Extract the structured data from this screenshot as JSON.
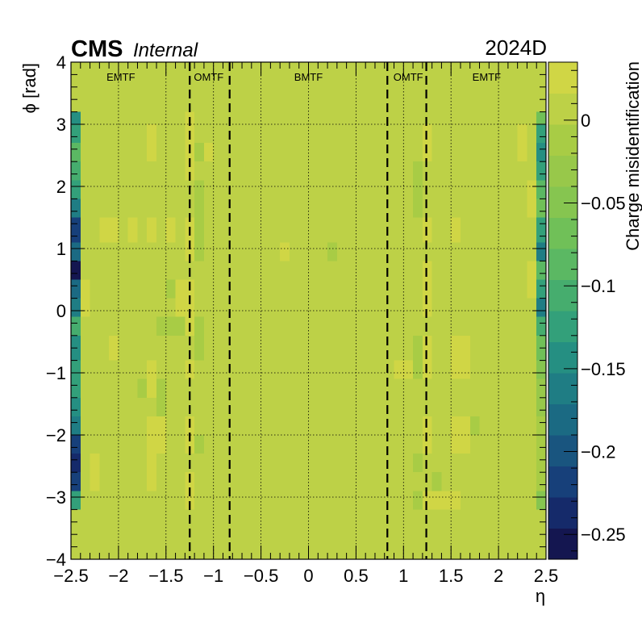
{
  "header": {
    "experiment": "CMS",
    "status": "Internal",
    "run_period": "2024D"
  },
  "chart_data": {
    "type": "heatmap",
    "title": "",
    "xlabel": "η",
    "ylabel": "ϕ [rad]",
    "zlabel": "Charge misidentification",
    "xlim": [
      -2.5,
      2.5
    ],
    "ylim": [
      -4,
      4
    ],
    "zlim": [
      -0.265,
      0.035
    ],
    "x_ticks": [
      -2.5,
      -2,
      -1.5,
      -1,
      -0.5,
      0,
      0.5,
      1,
      1.5,
      2,
      2.5
    ],
    "x_tick_labels": [
      "−2.5",
      "−2",
      "−1.5",
      "−1",
      "−0.5",
      "0",
      "0.5",
      "1",
      "1.5",
      "2",
      "2.5"
    ],
    "y_ticks": [
      -4,
      -3,
      -2,
      -1,
      0,
      1,
      2,
      3,
      4
    ],
    "y_tick_labels": [
      "−4",
      "−3",
      "−2",
      "−1",
      "0",
      "1",
      "2",
      "3",
      "4"
    ],
    "z_ticks": [
      0,
      -0.05,
      -0.1,
      -0.15,
      -0.2,
      -0.25
    ],
    "z_tick_labels": [
      "0",
      "−0.05",
      "−0.1",
      "−0.15",
      "−0.2",
      "−0.25"
    ],
    "grid": true,
    "colormap": [
      "#141650",
      "#152a6a",
      "#17407a",
      "#19557f",
      "#1b6a83",
      "#1f7d84",
      "#258f82",
      "#33a07a",
      "#46ad6e",
      "#5bb863",
      "#70c058",
      "#86c550",
      "#98c84a",
      "#a8cc45",
      "#bdd147",
      "#d0d645"
    ],
    "eta_bins": 50,
    "phi_bin_edges": [
      -3.2,
      -2.9,
      -2.6,
      -2.3,
      -2.0,
      -1.7,
      -1.4,
      -1.1,
      -0.8,
      -0.4,
      -0.1,
      0.2,
      0.5,
      0.8,
      1.1,
      1.5,
      1.8,
      2.1,
      2.4,
      2.7,
      3.0,
      3.2
    ],
    "baseline_value": 0.005,
    "cells": [
      {
        "eta": -2.45,
        "phi": [
          -3.2,
          -2.9
        ],
        "z": -0.13
      },
      {
        "eta": -2.45,
        "phi": [
          -2.9,
          -2.6
        ],
        "z": -0.21
      },
      {
        "eta": -2.45,
        "phi": [
          -2.6,
          -2.3
        ],
        "z": -0.24
      },
      {
        "eta": -2.45,
        "phi": [
          -2.3,
          -2.0
        ],
        "z": -0.21
      },
      {
        "eta": -2.45,
        "phi": [
          -2.0,
          -1.7
        ],
        "z": -0.17
      },
      {
        "eta": -2.45,
        "phi": [
          -1.7,
          -1.4
        ],
        "z": -0.14
      },
      {
        "eta": -2.45,
        "phi": [
          -1.4,
          -1.1
        ],
        "z": -0.12
      },
      {
        "eta": -2.45,
        "phi": [
          -1.1,
          -0.8
        ],
        "z": -0.12
      },
      {
        "eta": -2.45,
        "phi": [
          -0.8,
          -0.4
        ],
        "z": -0.14
      },
      {
        "eta": -2.45,
        "phi": [
          -0.4,
          -0.1
        ],
        "z": -0.11
      },
      {
        "eta": -2.45,
        "phi": [
          -0.1,
          0.2
        ],
        "z": -0.16
      },
      {
        "eta": -2.45,
        "phi": [
          0.2,
          0.5
        ],
        "z": -0.19
      },
      {
        "eta": -2.45,
        "phi": [
          0.5,
          0.8
        ],
        "z": -0.26
      },
      {
        "eta": -2.45,
        "phi": [
          0.8,
          1.1
        ],
        "z": -0.19
      },
      {
        "eta": -2.45,
        "phi": [
          1.1,
          1.5
        ],
        "z": -0.21
      },
      {
        "eta": -2.45,
        "phi": [
          1.5,
          1.8
        ],
        "z": -0.16
      },
      {
        "eta": -2.45,
        "phi": [
          1.8,
          2.1
        ],
        "z": -0.12
      },
      {
        "eta": -2.45,
        "phi": [
          2.1,
          2.4
        ],
        "z": -0.11
      },
      {
        "eta": -2.45,
        "phi": [
          2.4,
          2.7
        ],
        "z": -0.09
      },
      {
        "eta": -2.45,
        "phi": [
          2.7,
          3.0
        ],
        "z": -0.13
      },
      {
        "eta": -2.45,
        "phi": [
          3.0,
          3.2
        ],
        "z": -0.15
      },
      {
        "eta": -2.35,
        "phi": [
          -0.1,
          0.5
        ],
        "z": 0.025
      },
      {
        "eta": -2.25,
        "phi": [
          -2.9,
          -2.3
        ],
        "z": 0.02
      },
      {
        "eta": -2.15,
        "phi": [
          1.1,
          1.5
        ],
        "z": 0.02
      },
      {
        "eta": -2.05,
        "phi": [
          1.1,
          1.5
        ],
        "z": 0.02
      },
      {
        "eta": -2.05,
        "phi": [
          -0.8,
          -0.4
        ],
        "z": 0.02
      },
      {
        "eta": -2.05,
        "phi": [
          2.1,
          2.4
        ],
        "z": 0.015
      },
      {
        "eta": -1.85,
        "phi": [
          1.1,
          1.5
        ],
        "z": 0.02
      },
      {
        "eta": -1.85,
        "phi": [
          -2.6,
          -2.3
        ],
        "z": 0.015
      },
      {
        "eta": -1.75,
        "phi": [
          -1.4,
          -1.1
        ],
        "z": -0.005
      },
      {
        "eta": -1.65,
        "phi": [
          -1.1,
          -0.8
        ],
        "z": 0.03
      },
      {
        "eta": -1.65,
        "phi": [
          -1.4,
          -1.1
        ],
        "z": 0.025
      },
      {
        "eta": -1.65,
        "phi": [
          -2.3,
          -1.7
        ],
        "z": 0.02
      },
      {
        "eta": -1.65,
        "phi": [
          -2.9,
          -2.3
        ],
        "z": 0.02
      },
      {
        "eta": -1.65,
        "phi": [
          1.1,
          1.5
        ],
        "z": 0.02
      },
      {
        "eta": -1.65,
        "phi": [
          2.4,
          3.0
        ],
        "z": 0.02
      },
      {
        "eta": -1.55,
        "phi": [
          -1.7,
          -1.1
        ],
        "z": -0.01
      },
      {
        "eta": -1.55,
        "phi": [
          -2.3,
          -1.7
        ],
        "z": 0.02
      },
      {
        "eta": -1.45,
        "phi": [
          -0.4,
          -0.1
        ],
        "z": -0.015
      },
      {
        "eta": -1.55,
        "phi": [
          -0.4,
          -0.1
        ],
        "z": -0.015
      },
      {
        "eta": -1.45,
        "phi": [
          0.2,
          0.5
        ],
        "z": -0.01
      },
      {
        "eta": -1.45,
        "phi": [
          1.1,
          1.5
        ],
        "z": 0.02
      },
      {
        "eta": -1.45,
        "phi": [
          0.8,
          1.1
        ],
        "z": 0.01
      },
      {
        "eta": -1.45,
        "phi": [
          -1.1,
          -0.8
        ],
        "z": 0.01
      },
      {
        "eta": -1.35,
        "phi": [
          -0.1,
          0.5
        ],
        "z": 0.02
      },
      {
        "eta": -1.35,
        "phi": [
          -0.4,
          -0.1
        ],
        "z": -0.015
      },
      {
        "eta": -1.35,
        "phi": [
          2.7,
          3.0
        ],
        "z": 0.01
      },
      {
        "eta": -1.35,
        "phi": [
          -1.4,
          -1.1
        ],
        "z": 0.01
      },
      {
        "eta": -1.25,
        "phi": [
          -3.2,
          -2.6
        ],
        "z": 0.03
      },
      {
        "eta": -1.25,
        "phi": [
          -2.3,
          -1.7
        ],
        "z": 0.025
      },
      {
        "eta": -1.25,
        "phi": [
          -1.1,
          -0.8
        ],
        "z": 0.03
      },
      {
        "eta": -1.25,
        "phi": [
          -0.4,
          0.5
        ],
        "z": 0.025
      },
      {
        "eta": -1.25,
        "phi": [
          0.8,
          1.5
        ],
        "z": 0.02
      },
      {
        "eta": -1.25,
        "phi": [
          2.1,
          3.2
        ],
        "z": 0.02
      },
      {
        "eta": -1.15,
        "phi": [
          -2.3,
          -2.0
        ],
        "z": -0.015
      },
      {
        "eta": -1.15,
        "phi": [
          -0.8,
          -0.1
        ],
        "z": -0.01
      },
      {
        "eta": -1.15,
        "phi": [
          0.8,
          1.5
        ],
        "z": -0.015
      },
      {
        "eta": -1.15,
        "phi": [
          2.4,
          2.7
        ],
        "z": -0.01
      },
      {
        "eta": -1.15,
        "phi": [
          1.5,
          2.1
        ],
        "z": -0.01
      },
      {
        "eta": -1.05,
        "phi": [
          2.4,
          2.7
        ],
        "z": 0.02
      },
      {
        "eta": -0.25,
        "phi": [
          0.8,
          1.1
        ],
        "z": 0.02
      },
      {
        "eta": 0.25,
        "phi": [
          0.8,
          1.1
        ],
        "z": -0.01
      },
      {
        "eta": 0.95,
        "phi": [
          -1.1,
          -0.8
        ],
        "z": 0.02
      },
      {
        "eta": 1.05,
        "phi": [
          -1.1,
          -0.8
        ],
        "z": 0.02
      },
      {
        "eta": 1.15,
        "phi": [
          -2.6,
          -2.3
        ],
        "z": -0.01
      },
      {
        "eta": 1.15,
        "phi": [
          -1.1,
          -0.4
        ],
        "z": -0.01
      },
      {
        "eta": 1.15,
        "phi": [
          1.5,
          2.4
        ],
        "z": -0.01
      },
      {
        "eta": 1.15,
        "phi": [
          -3.2,
          -2.9
        ],
        "z": -0.005
      },
      {
        "eta": 1.25,
        "phi": [
          -3.2,
          -2.9
        ],
        "z": 0.025
      },
      {
        "eta": 1.25,
        "phi": [
          -2.3,
          -1.7
        ],
        "z": 0.025
      },
      {
        "eta": 1.25,
        "phi": [
          -1.1,
          -0.4
        ],
        "z": 0.02
      },
      {
        "eta": 1.25,
        "phi": [
          -0.1,
          0.8
        ],
        "z": 0.025
      },
      {
        "eta": 1.25,
        "phi": [
          1.1,
          1.5
        ],
        "z": 0.02
      },
      {
        "eta": 1.25,
        "phi": [
          2.4,
          3.0
        ],
        "z": 0.02
      },
      {
        "eta": 1.35,
        "phi": [
          -3.2,
          -2.9
        ],
        "z": 0.03
      },
      {
        "eta": 1.35,
        "phi": [
          -2.9,
          -2.6
        ],
        "z": -0.01
      },
      {
        "eta": 1.45,
        "phi": [
          -3.2,
          -2.9
        ],
        "z": 0.03
      },
      {
        "eta": 1.55,
        "phi": [
          -3.2,
          -2.9
        ],
        "z": 0.03
      },
      {
        "eta": 1.55,
        "phi": [
          -2.3,
          -1.7
        ],
        "z": 0.02
      },
      {
        "eta": 1.55,
        "phi": [
          -1.1,
          -0.8
        ],
        "z": 0.02
      },
      {
        "eta": 1.55,
        "phi": [
          -0.8,
          -0.4
        ],
        "z": 0.025
      },
      {
        "eta": 1.55,
        "phi": [
          1.1,
          1.5
        ],
        "z": 0.02
      },
      {
        "eta": 1.55,
        "phi": [
          2.7,
          3.2
        ],
        "z": 0.015
      },
      {
        "eta": 1.65,
        "phi": [
          -2.3,
          -1.7
        ],
        "z": 0.02
      },
      {
        "eta": 1.65,
        "phi": [
          -1.1,
          -0.8
        ],
        "z": 0.02
      },
      {
        "eta": 1.65,
        "phi": [
          -0.8,
          -0.4
        ],
        "z": 0.025
      },
      {
        "eta": 1.75,
        "phi": [
          -2.3,
          -2.0
        ],
        "z": 0.005
      },
      {
        "eta": 1.75,
        "phi": [
          -2.0,
          -1.7
        ],
        "z": -0.005
      },
      {
        "eta": 2.25,
        "phi": [
          -0.1,
          0.5
        ],
        "z": 0.015
      },
      {
        "eta": 2.25,
        "phi": [
          2.4,
          3.0
        ],
        "z": 0.02
      },
      {
        "eta": 2.35,
        "phi": [
          1.5,
          2.1
        ],
        "z": 0.03
      },
      {
        "eta": 2.35,
        "phi": [
          -0.4,
          -0.1
        ],
        "z": 0.01
      },
      {
        "eta": 2.35,
        "phi": [
          0.2,
          0.8
        ],
        "z": 0.02
      },
      {
        "eta": 2.45,
        "phi": [
          -3.2,
          -2.9
        ],
        "z": -0.05
      },
      {
        "eta": 2.45,
        "phi": [
          -2.9,
          -1.7
        ],
        "z": -0.01
      },
      {
        "eta": 2.45,
        "phi": [
          -1.7,
          -1.1
        ],
        "z": -0.035
      },
      {
        "eta": 2.45,
        "phi": [
          -1.1,
          -0.8
        ],
        "z": -0.05
      },
      {
        "eta": 2.45,
        "phi": [
          -0.8,
          -0.4
        ],
        "z": -0.07
      },
      {
        "eta": 2.45,
        "phi": [
          -0.4,
          -0.1
        ],
        "z": -0.1
      },
      {
        "eta": 2.45,
        "phi": [
          -0.1,
          0.2
        ],
        "z": -0.17
      },
      {
        "eta": 2.45,
        "phi": [
          0.2,
          0.5
        ],
        "z": -0.12
      },
      {
        "eta": 2.45,
        "phi": [
          0.5,
          0.8
        ],
        "z": -0.09
      },
      {
        "eta": 2.45,
        "phi": [
          0.8,
          1.1
        ],
        "z": -0.16
      },
      {
        "eta": 2.45,
        "phi": [
          1.1,
          1.5
        ],
        "z": -0.12
      },
      {
        "eta": 2.45,
        "phi": [
          1.5,
          1.8
        ],
        "z": -0.06
      },
      {
        "eta": 2.45,
        "phi": [
          1.8,
          2.1
        ],
        "z": -0.09
      },
      {
        "eta": 2.45,
        "phi": [
          2.1,
          2.4
        ],
        "z": -0.12
      },
      {
        "eta": 2.45,
        "phi": [
          2.4,
          2.7
        ],
        "z": -0.15
      },
      {
        "eta": 2.45,
        "phi": [
          2.7,
          3.0
        ],
        "z": -0.13
      },
      {
        "eta": 2.45,
        "phi": [
          3.0,
          3.2
        ],
        "z": -0.06
      }
    ],
    "regions": [
      {
        "label": "EMTF",
        "eta_center": -1.975
      },
      {
        "label": "OMTF",
        "eta_center": -1.05
      },
      {
        "label": "BMTF",
        "eta_center": 0
      },
      {
        "label": "OMTF",
        "eta_center": 1.05
      },
      {
        "label": "EMTF",
        "eta_center": 1.875
      }
    ],
    "boundaries": [
      -1.25,
      -0.83,
      0.83,
      1.24
    ]
  }
}
